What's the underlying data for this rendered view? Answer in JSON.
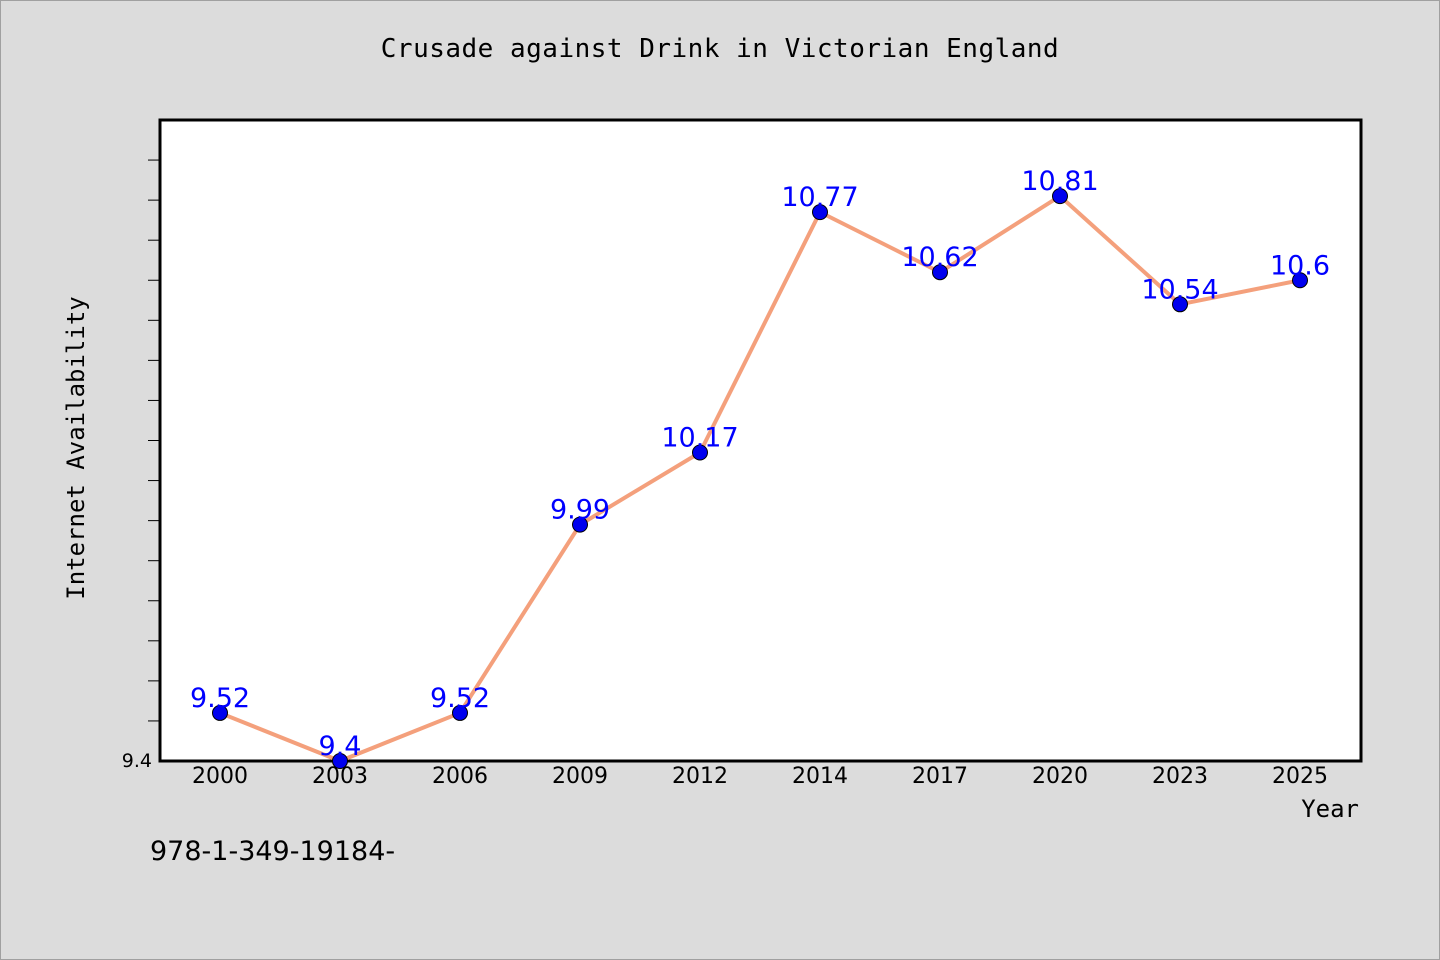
{
  "chart_data": {
    "type": "line",
    "title": "Crusade against Drink in Victorian England",
    "xlabel": "Year",
    "ylabel": "Internet Availability",
    "categories": [
      "2000",
      "2003",
      "2006",
      "2009",
      "2012",
      "2014",
      "2017",
      "2020",
      "2023",
      "2025"
    ],
    "series": [
      {
        "values": [
          9.52,
          9.4,
          9.52,
          9.99,
          10.17,
          10.77,
          10.62,
          10.81,
          10.54,
          10.6
        ],
        "data_labels": [
          "9.52",
          "9.4",
          "9.52",
          "9.99",
          "10.17",
          "10.77",
          "10.62",
          "10.81",
          "10.54",
          "10.6"
        ]
      }
    ],
    "ylim": [
      9.4,
      11.0
    ],
    "y_tick_labels": [
      "9.4"
    ],
    "grid": false,
    "colors": {
      "line": "#f4a07c",
      "marker": "#0000ee",
      "label": "#0000ff",
      "plot_background": "#ffffff",
      "page_background": "#dcdcdc"
    }
  },
  "footer": {
    "code": "978-1-349-19184-"
  }
}
